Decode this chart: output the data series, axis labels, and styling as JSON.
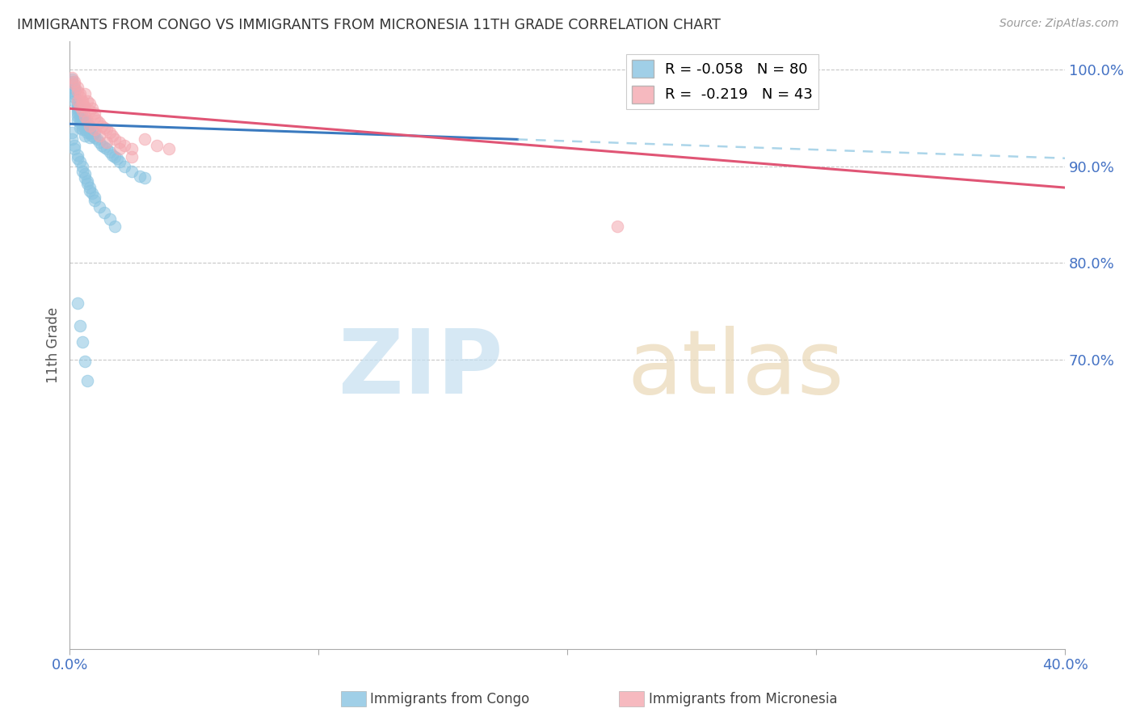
{
  "title": "IMMIGRANTS FROM CONGO VS IMMIGRANTS FROM MICRONESIA 11TH GRADE CORRELATION CHART",
  "source": "Source: ZipAtlas.com",
  "ylabel": "11th Grade",
  "xlim": [
    0.0,
    0.4
  ],
  "ylim": [
    0.4,
    1.03
  ],
  "yticks": [
    1.0,
    0.9,
    0.8,
    0.7
  ],
  "ytick_labels": [
    "100.0%",
    "90.0%",
    "80.0%",
    "70.0%"
  ],
  "xtick_left": "0.0%",
  "xtick_right": "40.0%",
  "congo_color": "#89c4e1",
  "micronesia_color": "#f4a8b0",
  "trendline_congo_solid_color": "#3a7abf",
  "trendline_congo_dash_color": "#89c4e1",
  "trendline_micronesia_color": "#e05575",
  "legend_r_congo": "-0.058",
  "legend_n_congo": "80",
  "legend_r_micronesia": "-0.219",
  "legend_n_micronesia": "43",
  "congo_x": [
    0.001,
    0.001,
    0.001,
    0.002,
    0.002,
    0.002,
    0.002,
    0.002,
    0.002,
    0.003,
    0.003,
    0.003,
    0.003,
    0.003,
    0.003,
    0.003,
    0.004,
    0.004,
    0.004,
    0.004,
    0.004,
    0.005,
    0.005,
    0.005,
    0.005,
    0.006,
    0.006,
    0.006,
    0.006,
    0.007,
    0.007,
    0.007,
    0.008,
    0.008,
    0.008,
    0.009,
    0.009,
    0.01,
    0.01,
    0.011,
    0.012,
    0.013,
    0.014,
    0.015,
    0.016,
    0.017,
    0.018,
    0.019,
    0.02,
    0.022,
    0.025,
    0.028,
    0.03,
    0.001,
    0.001,
    0.002,
    0.002,
    0.003,
    0.003,
    0.004,
    0.005,
    0.005,
    0.006,
    0.006,
    0.007,
    0.007,
    0.008,
    0.008,
    0.009,
    0.01,
    0.01,
    0.012,
    0.014,
    0.016,
    0.018,
    0.003,
    0.004,
    0.005,
    0.006,
    0.007
  ],
  "congo_y": [
    0.99,
    0.988,
    0.985,
    0.982,
    0.98,
    0.978,
    0.975,
    0.972,
    0.968,
    0.965,
    0.962,
    0.96,
    0.958,
    0.955,
    0.952,
    0.948,
    0.96,
    0.955,
    0.95,
    0.945,
    0.94,
    0.952,
    0.948,
    0.942,
    0.938,
    0.948,
    0.942,
    0.938,
    0.932,
    0.945,
    0.94,
    0.935,
    0.94,
    0.935,
    0.93,
    0.938,
    0.932,
    0.935,
    0.93,
    0.928,
    0.925,
    0.922,
    0.92,
    0.918,
    0.915,
    0.912,
    0.91,
    0.908,
    0.905,
    0.9,
    0.895,
    0.89,
    0.888,
    0.935,
    0.928,
    0.922,
    0.918,
    0.912,
    0.908,
    0.905,
    0.9,
    0.895,
    0.892,
    0.888,
    0.885,
    0.882,
    0.878,
    0.875,
    0.872,
    0.868,
    0.865,
    0.858,
    0.852,
    0.845,
    0.838,
    0.758,
    0.735,
    0.718,
    0.698,
    0.678
  ],
  "micronesia_x": [
    0.001,
    0.002,
    0.002,
    0.003,
    0.003,
    0.004,
    0.004,
    0.005,
    0.005,
    0.006,
    0.006,
    0.007,
    0.008,
    0.008,
    0.009,
    0.01,
    0.01,
    0.011,
    0.012,
    0.013,
    0.014,
    0.015,
    0.016,
    0.017,
    0.018,
    0.02,
    0.022,
    0.025,
    0.03,
    0.035,
    0.04,
    0.003,
    0.004,
    0.005,
    0.006,
    0.007,
    0.008,
    0.01,
    0.012,
    0.015,
    0.02,
    0.025,
    0.22
  ],
  "micronesia_y": [
    0.992,
    0.988,
    0.985,
    0.982,
    0.978,
    0.975,
    0.972,
    0.968,
    0.965,
    0.975,
    0.962,
    0.968,
    0.958,
    0.965,
    0.96,
    0.955,
    0.95,
    0.948,
    0.945,
    0.942,
    0.94,
    0.938,
    0.935,
    0.932,
    0.928,
    0.925,
    0.922,
    0.918,
    0.928,
    0.922,
    0.918,
    0.968,
    0.962,
    0.958,
    0.952,
    0.948,
    0.942,
    0.938,
    0.932,
    0.925,
    0.918,
    0.91,
    0.838
  ],
  "background_color": "#ffffff",
  "grid_color": "#c8c8c8",
  "title_color": "#333333",
  "tick_color": "#4472c4",
  "source_color": "#999999"
}
